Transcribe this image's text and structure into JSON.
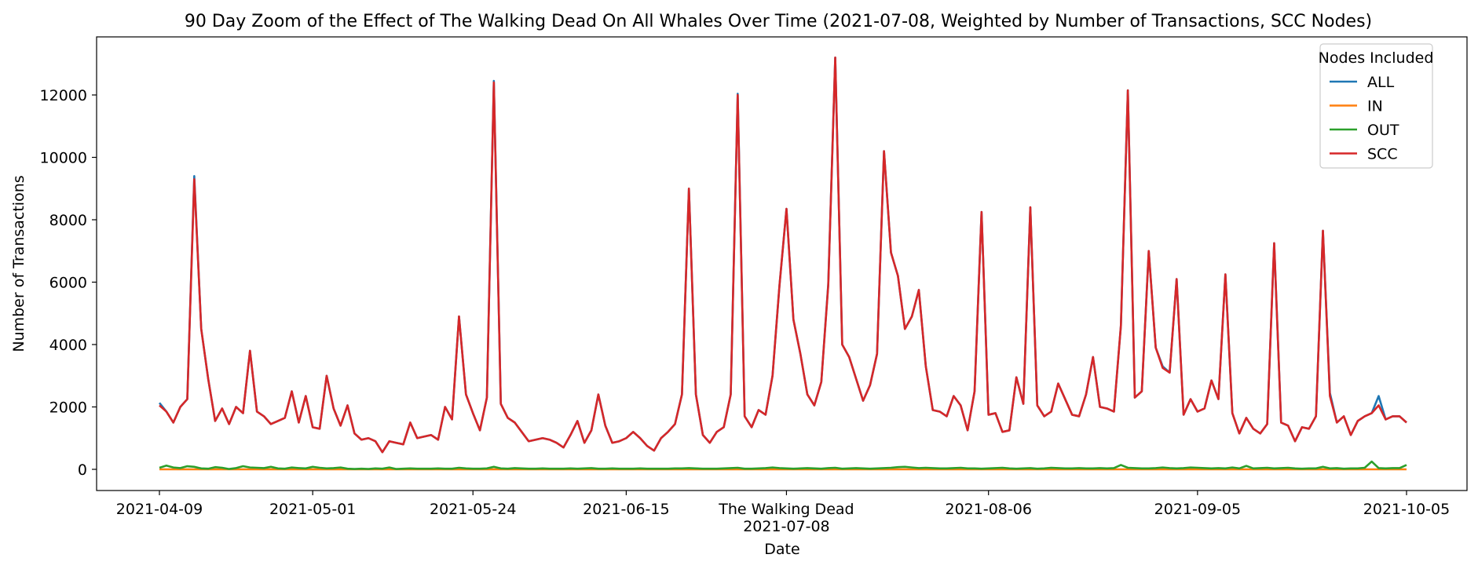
{
  "chart_data": {
    "type": "line",
    "title": "90 Day Zoom of the Effect of The Walking Dead On All Whales Over Time (2021-07-08, Weighted by Number of Transactions, SCC Nodes)",
    "xlabel": "Date",
    "ylabel": "Number of Transactions",
    "x_start": "2021-04-09",
    "x_end": "2021-10-05",
    "ylim": [
      -700,
      14000
    ],
    "yticks": [
      0,
      2000,
      4000,
      6000,
      8000,
      10000,
      12000
    ],
    "xticks": [
      {
        "date": "2021-04-09",
        "label": "2021-04-09"
      },
      {
        "date": "2021-05-01",
        "label": "2021-05-01"
      },
      {
        "date": "2021-05-24",
        "label": "2021-05-24"
      },
      {
        "date": "2021-06-15",
        "label": "2021-06-15"
      },
      {
        "date": "2021-07-08",
        "label": "2021-07-08"
      },
      {
        "date": "2021-08-06",
        "label": "2021-08-06"
      },
      {
        "date": "2021-09-05",
        "label": "2021-09-05"
      },
      {
        "date": "2021-10-05",
        "label": "2021-10-05"
      }
    ],
    "event": {
      "date": "2021-07-08",
      "label": "The Walking Dead"
    },
    "legend_title": "Nodes Included",
    "legend_position": "top-right",
    "series": [
      {
        "name": "ALL",
        "color": "#1f77b4"
      },
      {
        "name": "IN",
        "color": "#ff7f0e"
      },
      {
        "name": "OUT",
        "color": "#2ca02c"
      },
      {
        "name": "SCC",
        "color": "#d62728"
      }
    ],
    "scc_values": [
      2050,
      1850,
      1500,
      2000,
      2250,
      9300,
      4500,
      2900,
      1550,
      1950,
      1450,
      2000,
      1800,
      3800,
      1850,
      1700,
      1450,
      1550,
      1650,
      2500,
      1500,
      2350,
      1350,
      1300,
      3000,
      1950,
      1400,
      2050,
      1150,
      950,
      1000,
      900,
      550,
      900,
      850,
      800,
      1500,
      1000,
      1050,
      1100,
      950,
      2000,
      1600,
      4900,
      2400,
      1800,
      1250,
      2300,
      12400,
      2100,
      1650,
      1500,
      1200,
      900,
      950,
      1000,
      950,
      850,
      700,
      1100,
      1550,
      850,
      1250,
      2400,
      1400,
      850,
      900,
      1000,
      1200,
      1000,
      750,
      600,
      1000,
      1200,
      1450,
      2400,
      9000,
      2400,
      1100,
      850,
      1200,
      1350,
      2400,
      12000,
      1700,
      1350,
      1900,
      1750,
      3000,
      5900,
      8350,
      4800,
      3700,
      2400,
      2050,
      2800,
      5900,
      13200,
      4000,
      3600,
      2900,
      2200,
      2700,
      3700,
      10200,
      6950,
      6200,
      4500,
      4900,
      5750,
      3300,
      1900,
      1850,
      1700,
      2350,
      2050,
      1250,
      2500,
      8250,
      1750,
      1800,
      1200,
      1250,
      2950,
      2100,
      8400,
      2050,
      1700,
      1850,
      2750,
      2250,
      1750,
      1700,
      2400,
      3600,
      2000,
      1950,
      1850,
      4600,
      12150,
      2300,
      2500,
      7000,
      3900,
      3250,
      3100,
      6100,
      1750,
      2250,
      1850,
      1950,
      2850,
      2250,
      6250,
      1800,
      1150,
      1650,
      1300,
      1150,
      1450,
      7250,
      1500,
      1400,
      900,
      1350,
      1300,
      1700,
      7650,
      2350,
      1500,
      1700,
      1100,
      1550,
      1700,
      1800,
      2050,
      1600,
      1700,
      1700,
      1500
    ],
    "all_diffs": [
      [
        0,
        80
      ],
      [
        5,
        100
      ],
      [
        48,
        50
      ],
      [
        83,
        40
      ],
      [
        96,
        50
      ],
      [
        144,
        50
      ],
      [
        168,
        100
      ],
      [
        175,
        300
      ],
      [
        185,
        100
      ]
    ],
    "out_values": [
      50,
      120,
      60,
      40,
      100,
      80,
      30,
      20,
      70,
      50,
      10,
      40,
      100,
      60,
      50,
      40,
      80,
      30,
      20,
      60,
      40,
      30,
      80,
      50,
      30,
      40,
      60,
      20,
      10,
      20,
      10,
      30,
      20,
      60,
      10,
      20,
      30,
      20,
      20,
      20,
      30,
      20,
      20,
      50,
      30,
      20,
      20,
      30,
      80,
      30,
      20,
      40,
      30,
      20,
      20,
      30,
      20,
      20,
      20,
      30,
      20,
      30,
      40,
      20,
      20,
      30,
      20,
      20,
      20,
      30,
      20,
      20,
      20,
      20,
      30,
      30,
      40,
      30,
      20,
      20,
      20,
      30,
      40,
      50,
      20,
      20,
      30,
      40,
      60,
      40,
      30,
      20,
      30,
      40,
      30,
      20,
      40,
      50,
      20,
      30,
      40,
      30,
      20,
      30,
      40,
      50,
      70,
      80,
      60,
      40,
      50,
      40,
      30,
      30,
      40,
      50,
      30,
      30,
      20,
      30,
      40,
      50,
      30,
      20,
      30,
      40,
      20,
      30,
      50,
      40,
      30,
      30,
      40,
      30,
      30,
      40,
      30,
      40,
      140,
      50,
      40,
      30,
      30,
      40,
      60,
      40,
      30,
      40,
      60,
      50,
      40,
      30,
      40,
      30,
      60,
      30,
      110,
      30,
      40,
      50,
      30,
      40,
      50,
      30,
      20,
      30,
      30,
      80,
      30,
      40,
      20,
      30,
      30,
      50,
      250,
      40,
      30,
      40,
      40,
      140,
      50,
      60,
      80,
      60,
      40,
      60,
      30
    ],
    "in_value": 0
  }
}
